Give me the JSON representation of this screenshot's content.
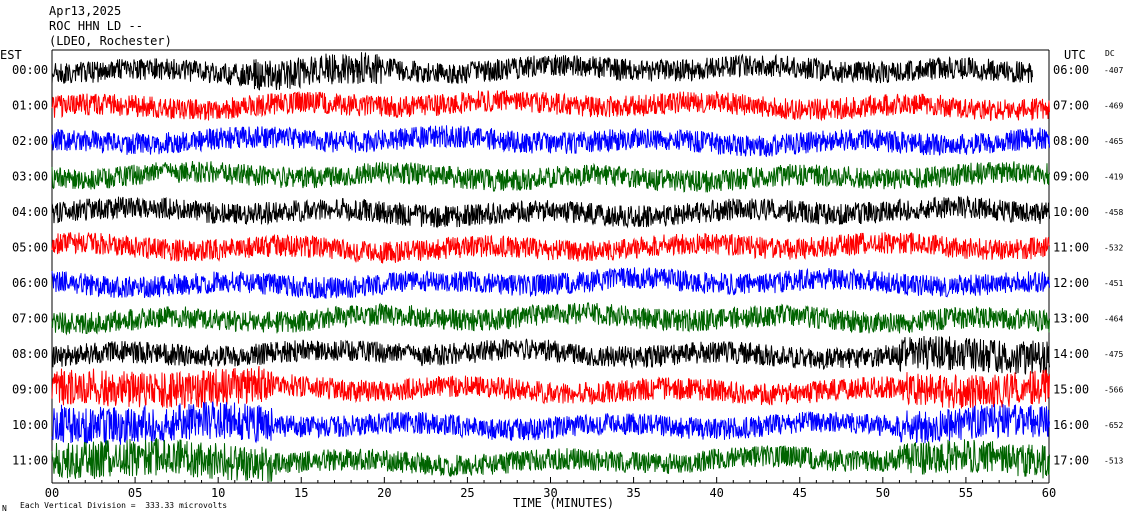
{
  "header": {
    "date": "Apr13,2025",
    "station": "ROC HHN LD --",
    "network": "(LDEO, Rochester)"
  },
  "left_timezone": "EST",
  "right_timezone": "UTC",
  "dc_label": "DC",
  "footer": {
    "corner": "N",
    "scale": "Each Vertical Division =  333.33 microvolts"
  },
  "colors": {
    "trace_cycle": [
      "#000000",
      "#ff0000",
      "#0000ff",
      "#006400"
    ]
  },
  "chart_data": {
    "type": "line",
    "title": "",
    "xlabel": "TIME (MINUTES)",
    "ylabel": "",
    "xlim": [
      0,
      60
    ],
    "x_ticks": [
      0,
      5,
      10,
      15,
      20,
      25,
      30,
      35,
      40,
      45,
      50,
      55,
      60
    ],
    "x_tick_labels": [
      "00",
      "05",
      "10",
      "15",
      "20",
      "25",
      "30",
      "35",
      "40",
      "45",
      "50",
      "55",
      "60"
    ],
    "rows": [
      {
        "est": "00:00",
        "utc": "06:00",
        "dc": "-407",
        "trace_end_min": 59
      },
      {
        "est": "01:00",
        "utc": "07:00",
        "dc": "-469",
        "trace_end_min": 60
      },
      {
        "est": "02:00",
        "utc": "08:00",
        "dc": "-465",
        "trace_end_min": 60
      },
      {
        "est": "03:00",
        "utc": "09:00",
        "dc": "-419",
        "trace_end_min": 60
      },
      {
        "est": "04:00",
        "utc": "10:00",
        "dc": "-458",
        "trace_end_min": 60
      },
      {
        "est": "05:00",
        "utc": "11:00",
        "dc": "-532",
        "trace_end_min": 60
      },
      {
        "est": "06:00",
        "utc": "12:00",
        "dc": "-451",
        "trace_end_min": 60
      },
      {
        "est": "07:00",
        "utc": "13:00",
        "dc": "-464",
        "trace_end_min": 60
      },
      {
        "est": "08:00",
        "utc": "14:00",
        "dc": "-475",
        "trace_end_min": 60
      },
      {
        "est": "09:00",
        "utc": "15:00",
        "dc": "-566",
        "trace_end_min": 60
      },
      {
        "est": "10:00",
        "utc": "16:00",
        "dc": "-652",
        "trace_end_min": 60
      },
      {
        "est": "11:00",
        "utc": "17:00",
        "dc": "-513",
        "trace_end_min": 60
      }
    ]
  }
}
